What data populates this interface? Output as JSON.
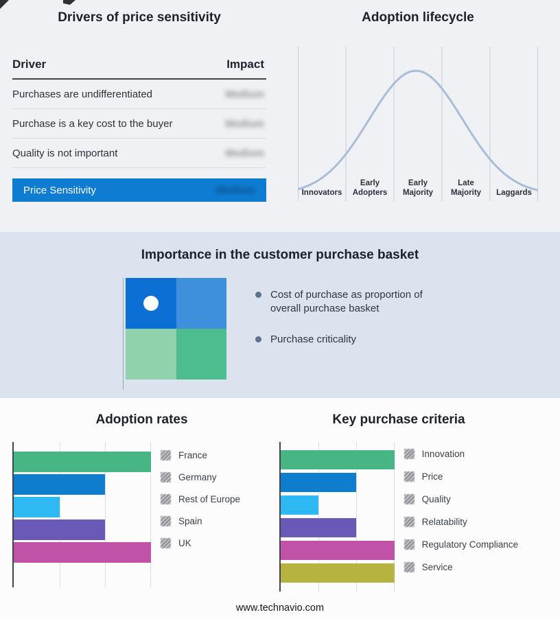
{
  "drivers_panel": {
    "title": "Drivers of price sensitivity",
    "columns": {
      "driver": "Driver",
      "impact": "Impact"
    },
    "rows": [
      {
        "driver": "Purchases are undifferentiated",
        "impact": "Medium"
      },
      {
        "driver": "Purchase is a key cost to the buyer",
        "impact": "Medium"
      },
      {
        "driver": "Quality is not important",
        "impact": "Medium"
      }
    ],
    "summary_row": {
      "label": "Price Sensitivity",
      "impact": "Medium"
    },
    "accent_color": "#0e7dd1",
    "impact_values_blurred": true
  },
  "lifecycle": {
    "title": "Adoption lifecycle",
    "stages": [
      "Innovators",
      "Early Adopters",
      "Early Majority",
      "Late Majority",
      "Laggards"
    ],
    "curve_color": "#a9bdd7"
  },
  "basket": {
    "title": "Importance in the customer purchase basket",
    "bullets": [
      "Cost of purchase as proportion of overall purchase basket",
      "Purchase criticality"
    ],
    "quad_colors": {
      "top_left": "#0b6fd4",
      "top_right": "#3e8fdc",
      "bottom_left": "#8fd2ab",
      "bottom_right": "#4dbd8d"
    },
    "bullet_color": "#5d7190"
  },
  "adoption_rates": {
    "title": "Adoption rates",
    "max": 3,
    "items": [
      {
        "label": "France",
        "value": 3,
        "color": "#48b584"
      },
      {
        "label": "Germany",
        "value": 2,
        "color": "#0e7dcd"
      },
      {
        "label": "Rest of Europe",
        "value": 1,
        "color": "#2fb9f2"
      },
      {
        "label": "Spain",
        "value": 2,
        "color": "#6b59b8"
      },
      {
        "label": "UK",
        "value": 3,
        "color": "#c052a8"
      }
    ]
  },
  "key_purchase_criteria": {
    "title": "Key purchase criteria",
    "max": 3,
    "items": [
      {
        "label": "Innovation",
        "value": 3,
        "color": "#48b584"
      },
      {
        "label": "Price",
        "value": 2,
        "color": "#0e7dcd"
      },
      {
        "label": "Quality",
        "value": 1,
        "color": "#2fb9f2"
      },
      {
        "label": "Relatability",
        "value": 2,
        "color": "#6b59b8"
      },
      {
        "label": "Regulatory Compliance",
        "value": 3,
        "color": "#c052a8"
      },
      {
        "label": "Service",
        "value": 3,
        "color": "#b7b33f"
      }
    ]
  },
  "footer": "www.technavio.com",
  "chart_data": [
    {
      "type": "line",
      "title": "Adoption lifecycle",
      "x": [
        "Innovators",
        "Early Adopters",
        "Early Majority",
        "Late Majority",
        "Laggards"
      ],
      "y_relative": [
        5,
        55,
        100,
        55,
        5
      ],
      "xlabel": "",
      "ylabel": "",
      "grid": "vertical-only",
      "legend_position": "none",
      "note": "Bell-shaped adoption curve, axes unlabeled; peak at Early Majority"
    },
    {
      "type": "bar",
      "orientation": "horizontal",
      "title": "Adoption rates",
      "categories": [
        "France",
        "Germany",
        "Rest of Europe",
        "Spain",
        "UK"
      ],
      "values": [
        3,
        2,
        1,
        2,
        3
      ],
      "xlim": [
        0,
        3
      ],
      "colors": [
        "#48b584",
        "#0e7dcd",
        "#2fb9f2",
        "#6b59b8",
        "#c052a8"
      ],
      "grid": "vertical-only",
      "legend_position": "right",
      "note": "Axis unlabeled; values estimated in gridline units"
    },
    {
      "type": "bar",
      "orientation": "horizontal",
      "title": "Key purchase criteria",
      "categories": [
        "Innovation",
        "Price",
        "Quality",
        "Relatability",
        "Regulatory Compliance",
        "Service"
      ],
      "values": [
        3,
        2,
        1,
        2,
        3,
        3
      ],
      "xlim": [
        0,
        3
      ],
      "colors": [
        "#48b584",
        "#0e7dcd",
        "#2fb9f2",
        "#6b59b8",
        "#c052a8",
        "#b7b33f"
      ],
      "grid": "vertical-only",
      "legend_position": "right",
      "note": "Axis unlabeled; values estimated in gridline units"
    },
    {
      "type": "table",
      "title": "Drivers of price sensitivity",
      "columns": [
        "Driver",
        "Impact"
      ],
      "rows": [
        [
          "Purchases are undifferentiated",
          "Medium"
        ],
        [
          "Purchase is a key cost to the buyer",
          "Medium"
        ],
        [
          "Quality is not important",
          "Medium"
        ],
        [
          "Price Sensitivity",
          "Medium"
        ]
      ],
      "note": "Impact values are blurred/redacted in the image"
    }
  ]
}
